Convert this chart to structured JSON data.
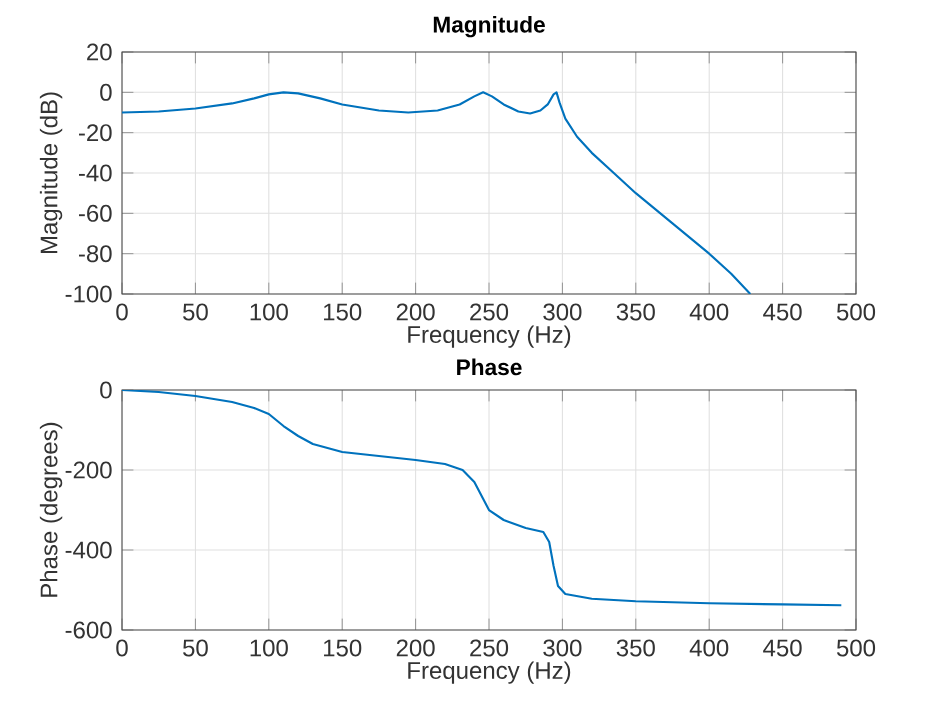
{
  "chart_data": [
    {
      "type": "line",
      "title": "Magnitude",
      "xlabel": "Frequency (Hz)",
      "ylabel": "Magnitude (dB)",
      "xlim": [
        0,
        500
      ],
      "ylim": [
        -100,
        20
      ],
      "xticks": [
        0,
        50,
        100,
        150,
        200,
        250,
        300,
        350,
        400,
        450,
        500
      ],
      "yticks": [
        -100,
        -80,
        -60,
        -40,
        -20,
        0,
        20
      ],
      "grid": true,
      "x": [
        0,
        25,
        50,
        75,
        90,
        100,
        110,
        120,
        135,
        150,
        175,
        195,
        215,
        230,
        240,
        246,
        252,
        260,
        270,
        278,
        285,
        290,
        294,
        296,
        298,
        302,
        310,
        320,
        335,
        350,
        375,
        400,
        415,
        428
      ],
      "series": [
        {
          "color": "#0072bd",
          "values": [
            -10,
            -9.5,
            -8,
            -5.5,
            -3,
            -1,
            0,
            -0.5,
            -3,
            -6,
            -9,
            -10,
            -9,
            -6,
            -2,
            0,
            -2,
            -6,
            -9.5,
            -10.5,
            -9,
            -6,
            -1,
            0,
            -5,
            -13,
            -22,
            -30,
            -40,
            -50,
            -65,
            -80,
            -90,
            -100
          ]
        }
      ]
    },
    {
      "type": "line",
      "title": "Phase",
      "xlabel": "Frequency (Hz)",
      "ylabel": "Phase (degrees)",
      "xlim": [
        0,
        500
      ],
      "ylim": [
        -600,
        0
      ],
      "xticks": [
        0,
        50,
        100,
        150,
        200,
        250,
        300,
        350,
        400,
        450,
        500
      ],
      "yticks": [
        -600,
        -400,
        -200,
        0
      ],
      "grid": true,
      "x": [
        0,
        25,
        50,
        75,
        90,
        100,
        110,
        120,
        130,
        150,
        175,
        200,
        220,
        232,
        240,
        245,
        250,
        260,
        275,
        287,
        291,
        294,
        297,
        302,
        320,
        350,
        400,
        450,
        490
      ],
      "series": [
        {
          "color": "#0072bd",
          "values": [
            0,
            -5,
            -15,
            -30,
            -45,
            -60,
            -90,
            -115,
            -135,
            -155,
            -165,
            -175,
            -185,
            -200,
            -230,
            -265,
            -300,
            -325,
            -345,
            -355,
            -380,
            -440,
            -490,
            -510,
            -522,
            -528,
            -533,
            -536,
            -538
          ]
        }
      ]
    }
  ]
}
